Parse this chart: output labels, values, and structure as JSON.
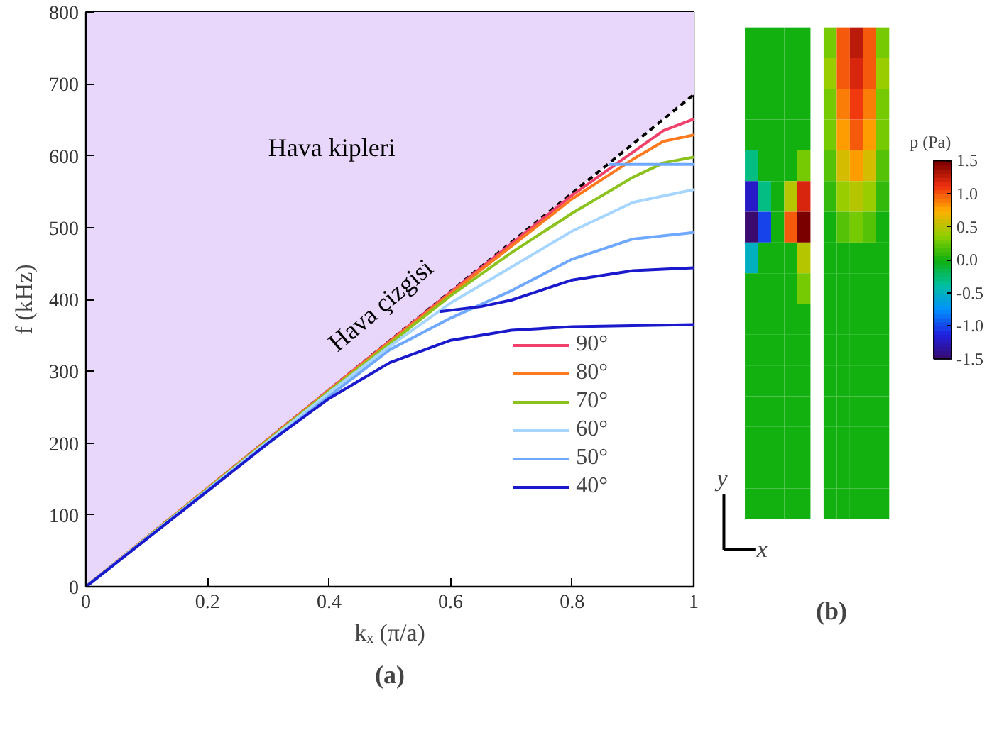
{
  "chart_data": [
    {
      "type": "line",
      "title": "(a)",
      "xlabel": "kₓ (π/a)",
      "ylabel": "f (kHz)",
      "xlim": [
        0,
        1
      ],
      "ylim": [
        0,
        800
      ],
      "xticks": [
        0,
        0.2,
        0.4,
        0.6,
        0.8,
        1
      ],
      "yticks": [
        0,
        100,
        200,
        300,
        400,
        500,
        600,
        700,
        800
      ],
      "grid": false,
      "legend": "bottom right",
      "annotations": [
        "Hava kipleri",
        "Hava çizgisi"
      ],
      "series": [
        {
          "color": "#000000",
          "line_style": "dashed",
          "x": [
            0,
            1
          ],
          "values": [
            0,
            685
          ],
          "lower": [
            0,
            685
          ],
          "upper": [
            800,
            800
          ]
        },
        {
          "name": "90°",
          "color": "#f0416a",
          "x": [
            0,
            0.2,
            0.4,
            0.6,
            0.8,
            0.9,
            0.95,
            1
          ],
          "values": [
            0,
            137,
            274,
            410,
            545,
            605,
            635,
            651
          ]
        },
        {
          "name": "80°",
          "color": "#ff7a1f",
          "x": [
            0,
            0.2,
            0.4,
            0.6,
            0.8,
            0.9,
            0.95,
            1
          ],
          "values": [
            0,
            137,
            273,
            408,
            540,
            595,
            620,
            629
          ]
        },
        {
          "name": "70°",
          "color": "#8cc21e",
          "x": [
            0,
            0.2,
            0.4,
            0.6,
            0.7,
            0.8,
            0.9,
            0.95,
            1
          ],
          "values": [
            0,
            136,
            272,
            405,
            465,
            520,
            570,
            590,
            598
          ]
        },
        {
          "name": "60°",
          "color": "#a6d6ff",
          "x": [
            0,
            0.2,
            0.4,
            0.5,
            0.6,
            0.7,
            0.8,
            0.9,
            1
          ],
          "values": [
            0,
            135,
            270,
            335,
            395,
            445,
            495,
            535,
            553
          ]
        },
        {
          "name": "50°",
          "color": "#6fa8ff",
          "x": [
            0,
            0.2,
            0.4,
            0.5,
            0.6,
            0.7,
            0.8,
            0.9,
            1
          ],
          "values": [
            0,
            134,
            265,
            330,
            374,
            412,
            456,
            484,
            493
          ]
        },
        {
          "color": "#6fa8ff",
          "x": [
            0.86,
            1
          ],
          "values": [
            588,
            588
          ]
        },
        {
          "name": "40°",
          "color": "#1a1acc",
          "x": [
            0,
            0.2,
            0.3,
            0.4,
            0.5,
            0.6,
            0.7,
            0.8,
            1
          ],
          "values": [
            0,
            133,
            200,
            262,
            312,
            343,
            357,
            362,
            365
          ]
        },
        {
          "color": "#1a1acc",
          "x": [
            0.582,
            0.65,
            0.7,
            0.8,
            0.9,
            1
          ],
          "values": [
            383,
            390,
            399,
            427,
            440,
            444
          ]
        }
      ]
    },
    {
      "type": "heatmap",
      "title": "(b)",
      "xlabel": "x",
      "ylabel": "y",
      "clabel": "p (Pa)",
      "clim": [
        -1.5,
        1.5
      ],
      "cticks": [
        {
          "value": 1.5,
          "label": "1.5"
        },
        {
          "value": 1,
          "label": "1.0"
        },
        {
          "value": 0.5,
          "label": "0.5"
        },
        {
          "value": 0,
          "label": "0.0"
        },
        {
          "value": -0.5,
          "label": "-0.5"
        },
        {
          "value": -1,
          "label": "-1.0"
        },
        {
          "value": -1.5,
          "label": "-1.5"
        }
      ],
      "categories": [
        null,
        null,
        null,
        null,
        null,
        null,
        null,
        null,
        null,
        null,
        null
      ],
      "y_categories": [
        null,
        null,
        null,
        null,
        null,
        null,
        null,
        null,
        null,
        null,
        null,
        null,
        null,
        null,
        null,
        null
      ],
      "cells": [
        [
          0,
          0,
          0,
          0,
          0,
          null,
          0.3,
          1.0,
          1.3,
          1.0,
          0.3
        ],
        [
          0,
          0,
          0,
          0,
          0,
          null,
          0.4,
          1.0,
          1.2,
          1.0,
          0.4
        ],
        [
          0,
          0,
          0,
          0,
          0,
          null,
          0.3,
          0.9,
          1.1,
          0.9,
          0.3
        ],
        [
          0,
          0,
          0,
          0,
          0,
          null,
          0.3,
          0.8,
          1.0,
          0.8,
          0.3
        ],
        [
          -0.3,
          0,
          0,
          0,
          0.3,
          null,
          0.2,
          0.6,
          0.8,
          0.6,
          0.2
        ],
        [
          -1.2,
          -0.3,
          0,
          0.5,
          1.2,
          null,
          0.1,
          0.4,
          0.5,
          0.4,
          0.1
        ],
        [
          -1.5,
          -1,
          0,
          1,
          1.5,
          null,
          0,
          0.2,
          0.3,
          0.2,
          0
        ],
        [
          -0.5,
          0,
          0,
          0,
          0.5,
          null,
          0,
          0,
          0,
          0,
          0
        ],
        [
          0,
          0,
          0,
          0,
          0.3,
          null,
          0,
          0,
          0,
          0,
          0
        ],
        [
          0,
          0,
          0,
          0,
          0,
          null,
          0,
          0,
          0,
          0,
          0
        ],
        [
          0,
          0,
          0,
          0,
          0,
          null,
          0,
          0,
          0,
          0,
          0
        ],
        [
          0,
          0,
          0,
          0,
          0,
          null,
          0,
          0,
          0,
          0,
          0
        ],
        [
          0,
          0,
          0,
          0,
          0,
          null,
          0,
          0,
          0,
          0,
          0
        ],
        [
          0,
          0,
          0,
          0,
          0,
          null,
          0,
          0,
          0,
          0,
          0
        ],
        [
          0,
          0,
          0,
          0,
          0,
          null,
          0,
          0,
          0,
          0,
          0
        ],
        [
          0,
          0,
          0,
          0,
          0,
          null,
          0,
          0,
          0,
          0,
          0
        ]
      ]
    }
  ]
}
